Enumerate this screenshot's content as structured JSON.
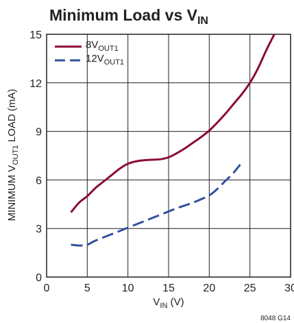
{
  "chart_data": {
    "type": "line",
    "title": {
      "text": "Minimum Load vs V",
      "sub": "IN"
    },
    "xlabel": {
      "text": "V",
      "sub": "IN",
      "suffix": " (V)"
    },
    "ylabel": {
      "text": "MINIMUM V",
      "sub": "OUT1",
      "suffix": " LOAD (mA)"
    },
    "xlim": [
      0,
      30
    ],
    "ylim": [
      0,
      15
    ],
    "x_ticks": [
      "0",
      "5",
      "10",
      "15",
      "20",
      "25",
      "30"
    ],
    "y_ticks": [
      "0",
      "3",
      "6",
      "9",
      "12",
      "15"
    ],
    "grid": true,
    "legend_position": "top-left",
    "footnote": "8048 G14",
    "series": [
      {
        "name": "8V",
        "name_sub": "OUT1",
        "color": "#8b0a3a",
        "style": "solid",
        "x": [
          3,
          4,
          5,
          6,
          7,
          8,
          9,
          10,
          11,
          12,
          13,
          14,
          15,
          16,
          17,
          18,
          19,
          20,
          21,
          22,
          23,
          24,
          25,
          26,
          27,
          28
        ],
        "y": [
          4.0,
          4.6,
          5.0,
          5.5,
          5.9,
          6.3,
          6.7,
          7.0,
          7.15,
          7.22,
          7.25,
          7.28,
          7.4,
          7.65,
          7.95,
          8.3,
          8.65,
          9.05,
          9.55,
          10.1,
          10.7,
          11.3,
          12.0,
          12.9,
          14.0,
          15.0
        ]
      },
      {
        "name": "12V",
        "name_sub": "OUT1",
        "color": "#3350a0",
        "style": "dashed",
        "x": [
          3,
          4,
          5,
          6,
          8,
          10,
          12,
          14,
          16,
          18,
          20,
          21,
          22,
          23,
          23.8
        ],
        "y": [
          2.0,
          1.95,
          2.0,
          2.25,
          2.65,
          3.05,
          3.45,
          3.85,
          4.25,
          4.6,
          5.05,
          5.45,
          5.95,
          6.45,
          6.95
        ]
      }
    ]
  }
}
